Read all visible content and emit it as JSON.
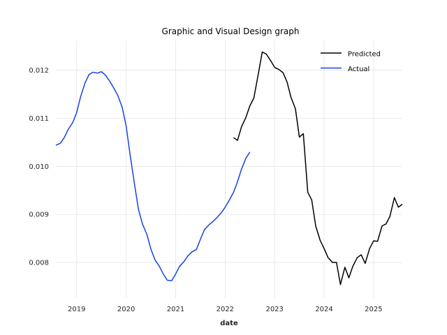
{
  "chart_data": {
    "type": "line",
    "title": "Graphic and Visual Design graph",
    "xlabel": "date",
    "ylabel": "",
    "xlim": [
      2018.58,
      2025.58
    ],
    "ylim": [
      0.00726,
      0.01262
    ],
    "grid": true,
    "legend": "top-right",
    "x_ticks": [
      2019,
      2020,
      2021,
      2022,
      2023,
      2024,
      2025
    ],
    "x_tick_labels": [
      "2019",
      "2020",
      "2021",
      "2022",
      "2023",
      "2024",
      "2025"
    ],
    "y_ticks": [
      0.008,
      0.009,
      0.01,
      0.011,
      0.012
    ],
    "y_tick_labels": [
      "0.008",
      "0.009",
      "0.010",
      "0.011",
      "0.012"
    ],
    "series": [
      {
        "name": "Predicted",
        "color": "#000000",
        "points": [
          [
            2022.17,
            0.0106
          ],
          [
            2022.25,
            0.01054
          ],
          [
            2022.33,
            0.01082
          ],
          [
            2022.42,
            0.01102
          ],
          [
            2022.5,
            0.01126
          ],
          [
            2022.58,
            0.01142
          ],
          [
            2022.67,
            0.01192
          ],
          [
            2022.75,
            0.01238
          ],
          [
            2022.83,
            0.01234
          ],
          [
            2022.92,
            0.0122
          ],
          [
            2023.0,
            0.01206
          ],
          [
            2023.08,
            0.01202
          ],
          [
            2023.17,
            0.01195
          ],
          [
            2023.25,
            0.01176
          ],
          [
            2023.33,
            0.01144
          ],
          [
            2023.42,
            0.0112
          ],
          [
            2023.5,
            0.01061
          ],
          [
            2023.58,
            0.01068
          ],
          [
            2023.67,
            0.00946
          ],
          [
            2023.75,
            0.0093
          ],
          [
            2023.83,
            0.00876
          ],
          [
            2023.92,
            0.00846
          ],
          [
            2024.0,
            0.00829
          ],
          [
            2024.08,
            0.0081
          ],
          [
            2024.17,
            0.008
          ],
          [
            2024.25,
            0.008
          ],
          [
            2024.33,
            0.00754
          ],
          [
            2024.42,
            0.0079
          ],
          [
            2024.5,
            0.00768
          ],
          [
            2024.58,
            0.00792
          ],
          [
            2024.67,
            0.0081
          ],
          [
            2024.75,
            0.00816
          ],
          [
            2024.83,
            0.00798
          ],
          [
            2024.92,
            0.00829
          ],
          [
            2025.0,
            0.00845
          ],
          [
            2025.08,
            0.00844
          ],
          [
            2025.17,
            0.00876
          ],
          [
            2025.25,
            0.0088
          ],
          [
            2025.33,
            0.00896
          ],
          [
            2025.42,
            0.00935
          ],
          [
            2025.5,
            0.00915
          ],
          [
            2025.58,
            0.00921
          ]
        ]
      },
      {
        "name": "Actual",
        "color": "#1643e5",
        "points": [
          [
            2018.58,
            0.01044
          ],
          [
            2018.67,
            0.01048
          ],
          [
            2018.75,
            0.0106
          ],
          [
            2018.83,
            0.01077
          ],
          [
            2018.92,
            0.01091
          ],
          [
            2019.0,
            0.01112
          ],
          [
            2019.08,
            0.01145
          ],
          [
            2019.17,
            0.01174
          ],
          [
            2019.25,
            0.01191
          ],
          [
            2019.33,
            0.01196
          ],
          [
            2019.42,
            0.01194
          ],
          [
            2019.5,
            0.01197
          ],
          [
            2019.58,
            0.0119
          ],
          [
            2019.67,
            0.01177
          ],
          [
            2019.75,
            0.01163
          ],
          [
            2019.83,
            0.01148
          ],
          [
            2019.92,
            0.01123
          ],
          [
            2020.0,
            0.01084
          ],
          [
            2020.08,
            0.01024
          ],
          [
            2020.17,
            0.00962
          ],
          [
            2020.25,
            0.0091
          ],
          [
            2020.33,
            0.0088
          ],
          [
            2020.42,
            0.00858
          ],
          [
            2020.5,
            0.00828
          ],
          [
            2020.58,
            0.00806
          ],
          [
            2020.67,
            0.00792
          ],
          [
            2020.75,
            0.00776
          ],
          [
            2020.83,
            0.00763
          ],
          [
            2020.92,
            0.00762
          ],
          [
            2021.0,
            0.00776
          ],
          [
            2021.08,
            0.00792
          ],
          [
            2021.17,
            0.00802
          ],
          [
            2021.25,
            0.00814
          ],
          [
            2021.33,
            0.00822
          ],
          [
            2021.42,
            0.00827
          ],
          [
            2021.5,
            0.00848
          ],
          [
            2021.58,
            0.00868
          ],
          [
            2021.67,
            0.00878
          ],
          [
            2021.75,
            0.00885
          ],
          [
            2021.83,
            0.00893
          ],
          [
            2021.92,
            0.00903
          ],
          [
            2022.0,
            0.00915
          ],
          [
            2022.08,
            0.00929
          ],
          [
            2022.17,
            0.00946
          ],
          [
            2022.25,
            0.00968
          ],
          [
            2022.33,
            0.00994
          ],
          [
            2022.42,
            0.01017
          ],
          [
            2022.5,
            0.0103
          ]
        ]
      }
    ]
  }
}
